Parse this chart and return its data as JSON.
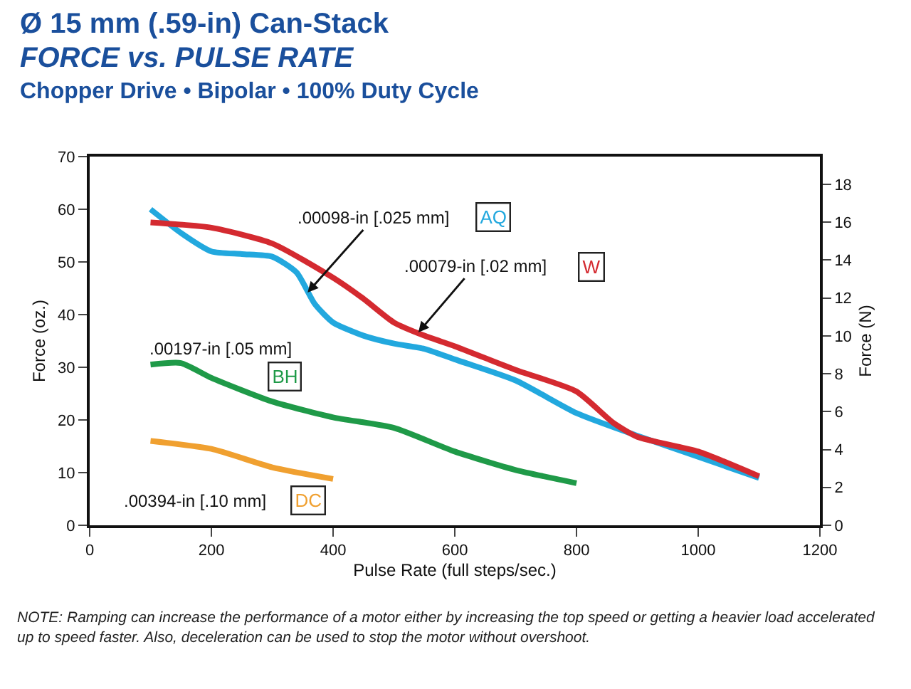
{
  "chart_data": {
    "type": "line",
    "title": "Ø 15 mm (.59-in) Can-Stack",
    "subtitle": "FORCE vs. PULSE RATE",
    "xlabel": "Pulse Rate (full steps/sec.)",
    "ylabel": "Force (oz.)",
    "y2label": "Force (N)",
    "xlim": [
      0,
      1200
    ],
    "xticks": [
      0,
      200,
      400,
      600,
      800,
      1000,
      1200
    ],
    "ylim": [
      0,
      70
    ],
    "yticks": [
      0,
      10,
      20,
      30,
      40,
      50,
      60,
      70
    ],
    "y2lim": [
      0,
      19.46
    ],
    "y2ticks": [
      0,
      2,
      4,
      6,
      8,
      10,
      12,
      14,
      16,
      18
    ],
    "grid": false,
    "legend": false,
    "marker": "none",
    "line_style": "solid",
    "series": [
      {
        "name": "AQ",
        "color": "#22a8de",
        "x": [
          100,
          150,
          200,
          250,
          300,
          340,
          370,
          400,
          450,
          500,
          550,
          600,
          700,
          800,
          900,
          1000,
          1100
        ],
        "values": [
          60,
          55.5,
          52,
          51.5,
          51,
          48,
          42,
          38.5,
          36,
          34.5,
          33.5,
          31.5,
          27.5,
          21.3,
          17,
          13,
          9
        ]
      },
      {
        "name": "W",
        "color": "#d42a30",
        "x": [
          100,
          200,
          300,
          400,
          450,
          500,
          550,
          600,
          700,
          800,
          860,
          900,
          1000,
          1100
        ],
        "values": [
          57.5,
          56.5,
          53.5,
          47,
          43,
          38.5,
          36,
          34,
          29.5,
          25.4,
          19.5,
          16.8,
          14,
          9.3
        ]
      },
      {
        "name": "BH",
        "color": "#1f9a48",
        "x": [
          100,
          150,
          200,
          300,
          400,
          500,
          600,
          700,
          800
        ],
        "values": [
          30.5,
          30.8,
          28,
          23.5,
          20.5,
          18.5,
          14,
          10.5,
          8
        ]
      },
      {
        "name": "DC",
        "color": "#f0a030",
        "x": [
          100,
          200,
          300,
          400
        ],
        "values": [
          16,
          14.5,
          11,
          8.8
        ]
      }
    ],
    "annotations": [
      "Chopper Drive • Bipolar • 100% Duty Cycle",
      {
        "text": ".00098-in [.025 mm]",
        "x": 355,
        "y": 43.8
      },
      {
        "text": ".00079-in [.02 mm]",
        "x": 537,
        "y": 36.2
      },
      ".00197-in [.05 mm]",
      ".00394-in [.10 mm]",
      "NOTE: Ramping can increase the performance of a motor either by increasing the top speed or getting a heavier load accelerated up to speed faster.  Also, deceleration can be used to stop the motor without overshoot."
    ]
  }
}
